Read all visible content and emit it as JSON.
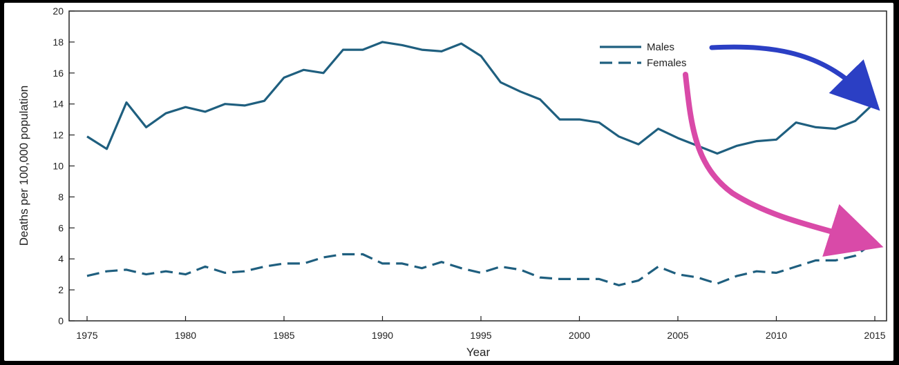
{
  "chart_data": {
    "type": "line",
    "xlabel": "Year",
    "ylabel": "Deaths per 100,000 population",
    "xlim": [
      1975,
      2015
    ],
    "ylim": [
      0,
      20
    ],
    "x_ticks": [
      "1975",
      "1980",
      "1985",
      "1990",
      "1995",
      "2000",
      "2005",
      "2010",
      "2015"
    ],
    "y_ticks": [
      "0",
      "2",
      "4",
      "6",
      "8",
      "10",
      "12",
      "14",
      "16",
      "18",
      "20"
    ],
    "grid": false,
    "legend_position": "top-right",
    "x": [
      1975,
      1976,
      1977,
      1978,
      1979,
      1980,
      1981,
      1982,
      1983,
      1984,
      1985,
      1986,
      1987,
      1988,
      1989,
      1990,
      1991,
      1992,
      1993,
      1994,
      1995,
      1996,
      1997,
      1998,
      1999,
      2000,
      2001,
      2002,
      2003,
      2004,
      2005,
      2006,
      2007,
      2008,
      2009,
      2010,
      2011,
      2012,
      2013,
      2014,
      2015
    ],
    "series": [
      {
        "name": "Males",
        "style": "solid",
        "color": "#1f5f7f",
        "values": [
          11.9,
          11.1,
          14.1,
          12.5,
          13.4,
          13.8,
          13.5,
          14.0,
          13.9,
          14.2,
          15.7,
          16.2,
          16.0,
          17.5,
          17.5,
          18.0,
          17.8,
          17.5,
          17.4,
          17.9,
          17.1,
          15.4,
          14.8,
          14.3,
          13.0,
          13.0,
          12.8,
          11.9,
          11.4,
          12.4,
          11.8,
          11.3,
          10.8,
          11.3,
          11.6,
          11.7,
          12.8,
          12.5,
          12.4,
          12.9,
          14.1
        ]
      },
      {
        "name": "Females",
        "style": "dashed",
        "color": "#1f5f7f",
        "values": [
          2.9,
          3.2,
          3.3,
          3.0,
          3.2,
          3.0,
          3.5,
          3.1,
          3.2,
          3.5,
          3.7,
          3.7,
          4.1,
          4.3,
          4.3,
          3.7,
          3.7,
          3.4,
          3.8,
          3.4,
          3.1,
          3.5,
          3.3,
          2.8,
          2.7,
          2.7,
          2.7,
          2.3,
          2.6,
          3.5,
          3.0,
          2.8,
          2.4,
          2.9,
          3.2,
          3.1,
          3.5,
          3.9,
          3.9,
          4.2,
          5.1
        ]
      }
    ],
    "annotations": [
      {
        "kind": "arrow",
        "color": "#2b3fc4",
        "from_label": "Males",
        "to": [
          2015,
          14.1
        ]
      },
      {
        "kind": "arrow",
        "color": "#d94aa8",
        "from_label": "Females",
        "to": [
          2015,
          5.1
        ]
      }
    ]
  }
}
